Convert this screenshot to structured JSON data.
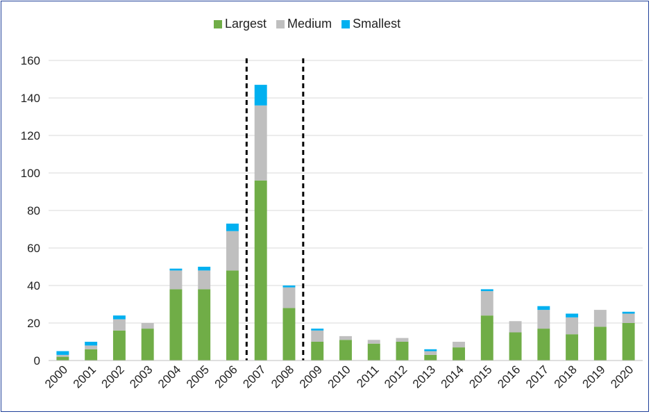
{
  "chart_data": {
    "type": "bar",
    "stacked": true,
    "title": "",
    "xlabel": "",
    "ylabel": "",
    "ylim": [
      0,
      160
    ],
    "yticks": [
      0,
      20,
      40,
      60,
      80,
      100,
      120,
      140,
      160
    ],
    "grid": true,
    "legend_position": "top-center",
    "categories": [
      "2000",
      "2001",
      "2002",
      "2003",
      "2004",
      "2005",
      "2006",
      "2007",
      "2008",
      "2009",
      "2010",
      "2011",
      "2012",
      "2013",
      "2014",
      "2015",
      "2016",
      "2017",
      "2018",
      "2019",
      "2020"
    ],
    "series": [
      {
        "name": "Largest",
        "color": "#70ad47",
        "values": [
          2,
          6,
          16,
          17,
          38,
          38,
          48,
          96,
          28,
          10,
          11,
          9,
          10,
          3,
          7,
          24,
          15,
          17,
          14,
          18,
          20
        ]
      },
      {
        "name": "Medium",
        "color": "#bfbfbf",
        "values": [
          1,
          2,
          6,
          3,
          10,
          10,
          21,
          40,
          11,
          6,
          2,
          2,
          2,
          2,
          3,
          13,
          6,
          10,
          9,
          9,
          5
        ]
      },
      {
        "name": "Smallest",
        "color": "#00b0f0",
        "values": [
          2,
          2,
          2,
          0,
          1,
          2,
          4,
          11,
          1,
          1,
          0,
          0,
          0,
          1,
          0,
          1,
          0,
          2,
          2,
          0,
          1
        ]
      }
    ],
    "dashed_lines_between": [
      [
        "2006",
        "2007"
      ],
      [
        "2008",
        "2009"
      ]
    ]
  }
}
